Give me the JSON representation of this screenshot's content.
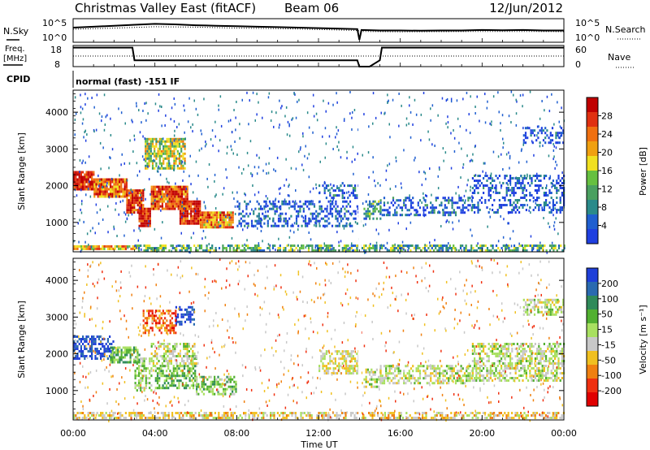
{
  "header": {
    "station": "Christmas Valley East (fitACF)",
    "beam": "Beam 06",
    "date": "12/Jun/2012"
  },
  "left_labels": {
    "nsky": "N.Sky",
    "freq_line1": "Freq.",
    "freq_line2": "[MHz]",
    "cpid": "CPID"
  },
  "right_labels": {
    "nsearch": "N.Search",
    "nave": "Nave"
  },
  "mode_text": "normal (fast) -151 IF",
  "chart_data": [
    {
      "type": "line",
      "panel": "noise",
      "y_ticks_left": [
        "10^5",
        "10^0"
      ],
      "y_ticks_right": [
        "10^5",
        "10^0"
      ],
      "series": [
        {
          "name": "N.Sky",
          "x": [
            0,
            1,
            2,
            3,
            4,
            5,
            6,
            7,
            8,
            9,
            10,
            11,
            12,
            13,
            13.9,
            14.0,
            14.1,
            15,
            16,
            17,
            18,
            19,
            20,
            21,
            22,
            23,
            24
          ],
          "values": [
            0.62,
            0.66,
            0.7,
            0.74,
            0.78,
            0.76,
            0.72,
            0.7,
            0.68,
            0.66,
            0.64,
            0.62,
            0.6,
            0.58,
            0.56,
            0.1,
            0.52,
            0.5,
            0.5,
            0.49,
            0.5,
            0.5,
            0.52,
            0.51,
            0.52,
            0.5,
            0.5
          ]
        },
        {
          "name": "N.Search",
          "x": [
            0,
            2,
            4,
            6,
            8,
            10,
            12,
            13.9,
            14.1,
            16,
            18,
            20,
            22,
            24
          ],
          "values": [
            0.55,
            0.6,
            0.66,
            0.64,
            0.6,
            0.58,
            0.54,
            0.5,
            0.46,
            0.44,
            0.45,
            0.46,
            0.46,
            0.45
          ]
        }
      ]
    },
    {
      "type": "line",
      "panel": "frequency",
      "y_ticks_left": [
        "18",
        "8"
      ],
      "y_ticks_right": [
        "60",
        "0"
      ],
      "series": [
        {
          "name": "Freq.",
          "x": [
            0,
            2.9,
            3.0,
            13.9,
            14.0,
            14.5,
            15.0,
            15.1,
            24
          ],
          "values": [
            17,
            17,
            11,
            11,
            8,
            8,
            11,
            17,
            17
          ]
        },
        {
          "name": "Nave",
          "x": [
            0,
            24
          ],
          "values": [
            13,
            13
          ]
        }
      ]
    },
    {
      "type": "heatmap",
      "panel": "power",
      "xlabel": "",
      "ylabel": "Slant Range [km]",
      "xlim": [
        0,
        24
      ],
      "ylim": [
        200,
        4600
      ],
      "y_ticks": [
        1000,
        2000,
        3000,
        4000
      ],
      "colorbar": {
        "label": "Power [dB]",
        "ticks": [
          4,
          8,
          12,
          16,
          20,
          24,
          28
        ],
        "colors": [
          "#1f3fe0",
          "#1f5fd0",
          "#2a8a8a",
          "#4aa060",
          "#66c040",
          "#f0e020",
          "#f0a010",
          "#f07010",
          "#e03010",
          "#c00000"
        ]
      },
      "regions": [
        {
          "t0": 0.0,
          "t1": 1.0,
          "r0": 1900,
          "r1": 2400,
          "level": 0.9
        },
        {
          "t0": 1.0,
          "t1": 2.6,
          "r0": 1700,
          "r1": 2200,
          "level": 0.75
        },
        {
          "t0": 2.6,
          "t1": 3.4,
          "r0": 1300,
          "r1": 1900,
          "level": 0.85
        },
        {
          "t0": 3.2,
          "t1": 3.8,
          "r0": 900,
          "r1": 1400,
          "level": 0.95
        },
        {
          "t0": 3.8,
          "t1": 5.6,
          "r0": 1400,
          "r1": 2000,
          "level": 0.8
        },
        {
          "t0": 5.2,
          "t1": 6.2,
          "r0": 1000,
          "r1": 1600,
          "level": 0.9
        },
        {
          "t0": 6.2,
          "t1": 7.8,
          "r0": 900,
          "r1": 1300,
          "level": 0.7
        },
        {
          "t0": 3.5,
          "t1": 5.5,
          "r0": 2500,
          "r1": 3300,
          "level": 0.5
        },
        {
          "t0": 0.0,
          "t1": 3.0,
          "r0": 300,
          "r1": 380,
          "level": 0.6
        },
        {
          "t0": 3.0,
          "t1": 24,
          "r0": 250,
          "r1": 400,
          "level": 0.35
        },
        {
          "t0": 8.0,
          "t1": 14.0,
          "r0": 900,
          "r1": 1600,
          "level": 0.1
        },
        {
          "t0": 12.0,
          "t1": 14.0,
          "r0": 1700,
          "r1": 2100,
          "level": 0.12
        },
        {
          "t0": 14.2,
          "t1": 15.0,
          "r0": 1100,
          "r1": 1600,
          "level": 0.3
        },
        {
          "t0": 15.0,
          "t1": 19.5,
          "r0": 1200,
          "r1": 1700,
          "level": 0.12
        },
        {
          "t0": 19.5,
          "t1": 24,
          "r0": 1300,
          "r1": 2300,
          "level": 0.08
        },
        {
          "t0": 22.0,
          "t1": 24,
          "r0": 3200,
          "r1": 3600,
          "level": 0.1
        }
      ]
    },
    {
      "type": "heatmap",
      "panel": "velocity",
      "xlabel": "Time UT",
      "ylabel": "Slant Range [km]",
      "xlim": [
        0,
        24
      ],
      "ylim": [
        200,
        4600
      ],
      "x_ticks": [
        "00:00",
        "04:00",
        "08:00",
        "12:00",
        "16:00",
        "20:00",
        "00:00"
      ],
      "y_ticks": [
        1000,
        2000,
        3000,
        4000
      ],
      "colorbar": {
        "label": "Velocity [m s⁻¹]",
        "ticks": [
          200,
          100,
          50,
          15,
          -15,
          -50,
          -100,
          -200
        ],
        "colors": [
          "#1f3fd8",
          "#2a6ab0",
          "#2f8a5a",
          "#52b030",
          "#a8e060",
          "#c8c8c8",
          "#f0c020",
          "#f08010",
          "#f03010",
          "#e00000"
        ]
      },
      "regions": [
        {
          "t0": 0.0,
          "t1": 2.0,
          "r0": 1900,
          "r1": 2500,
          "v": 0.05
        },
        {
          "t0": 1.8,
          "t1": 3.2,
          "r0": 1800,
          "r1": 2200,
          "v": 0.35
        },
        {
          "t0": 3.0,
          "t1": 3.8,
          "r0": 1000,
          "r1": 1900,
          "v": 0.45
        },
        {
          "t0": 3.8,
          "t1": 6.0,
          "r0": 1700,
          "r1": 2300,
          "v": 0.5
        },
        {
          "t0": 4.0,
          "t1": 6.0,
          "r0": 1100,
          "r1": 1700,
          "v": 0.35
        },
        {
          "t0": 6.0,
          "t1": 8.0,
          "r0": 900,
          "r1": 1400,
          "v": 0.4
        },
        {
          "t0": 5.0,
          "t1": 5.9,
          "r0": 2800,
          "r1": 3300,
          "v": 0.05
        },
        {
          "t0": 3.4,
          "t1": 5.0,
          "r0": 2600,
          "r1": 3200,
          "v": 0.8
        },
        {
          "t0": 0.0,
          "t1": 24,
          "r0": 250,
          "r1": 420,
          "v": 0.6
        },
        {
          "t0": 14.2,
          "t1": 15.0,
          "r0": 1100,
          "r1": 1600,
          "v": 0.5
        },
        {
          "t0": 15.0,
          "t1": 19.5,
          "r0": 1200,
          "r1": 1700,
          "v": 0.5
        },
        {
          "t0": 12.0,
          "t1": 14.0,
          "r0": 1500,
          "r1": 2100,
          "v": 0.55
        },
        {
          "t0": 19.5,
          "t1": 24,
          "r0": 1300,
          "r1": 2300,
          "v": 0.5
        },
        {
          "t0": 22.0,
          "t1": 24,
          "r0": 3100,
          "r1": 3500,
          "v": 0.5
        }
      ]
    }
  ]
}
